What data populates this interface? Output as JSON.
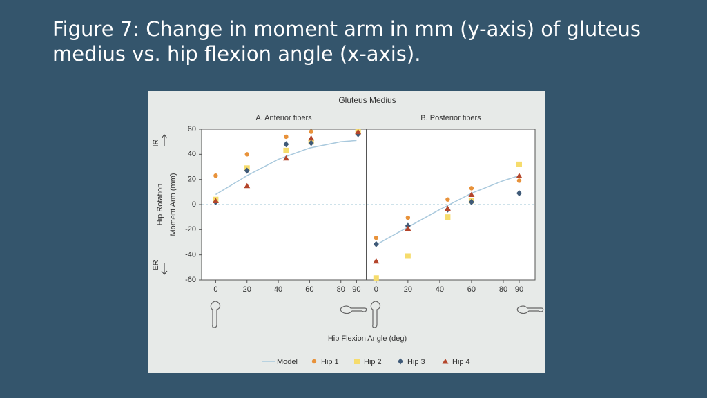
{
  "slide_title": [
    "Figure 7: Change in moment arm in mm (y-axis) of gluteus",
    "medius vs. hip flexion angle (x-axis)."
  ],
  "figure_title": "Gluteus Medius",
  "x_label": "Hip Flexion Angle (deg)",
  "y_label": [
    "Hip Rotation",
    "Moment Arm (mm)"
  ],
  "ir_label": "IR",
  "er_label": "ER",
  "legend": [
    {
      "name": "Model",
      "marker": "line",
      "color": "#a9c9dd"
    },
    {
      "name": "Hip 1",
      "marker": "circle",
      "color": "#e8923a"
    },
    {
      "name": "Hip 2",
      "marker": "square",
      "color": "#f6dc6c"
    },
    {
      "name": "Hip 3",
      "marker": "diamond",
      "color": "#3f5a78"
    },
    {
      "name": "Hip 4",
      "marker": "triangle",
      "color": "#b4452b"
    }
  ],
  "chart_data": [
    {
      "type": "scatter",
      "title": "A. Anterior fibers",
      "x": [
        0,
        20,
        45,
        61,
        91
      ],
      "series": [
        {
          "values": [
            23,
            40,
            54,
            58,
            57
          ]
        },
        {
          "values": [
            4,
            29,
            43,
            50,
            58
          ]
        },
        {
          "values": [
            2,
            27,
            48,
            49,
            56
          ]
        },
        {
          "values": [
            3,
            15,
            37,
            53,
            58
          ]
        }
      ],
      "model": {
        "x": [
          0,
          20,
          40,
          60,
          80,
          90
        ],
        "y": [
          8,
          23,
          36,
          45,
          50,
          51
        ]
      },
      "xlim": [
        -9,
        96
      ],
      "ylim": [
        -60,
        60
      ],
      "xticks": [
        0,
        20,
        40,
        60,
        80,
        90
      ],
      "yticks": [
        -60,
        -40,
        -20,
        0,
        20,
        40,
        60
      ],
      "zero_line": true
    },
    {
      "type": "scatter",
      "title": "B. Posterior fibers",
      "x": [
        0,
        20,
        45,
        60,
        90
      ],
      "series": [
        {
          "values": [
            -26.5,
            -10.5,
            4,
            13,
            19
          ]
        },
        {
          "values": [
            -58.5,
            -41,
            -10,
            3,
            32
          ]
        },
        {
          "values": [
            -31.5,
            -17,
            -4,
            2,
            9
          ]
        },
        {
          "values": [
            -45,
            -19,
            -3,
            8,
            23
          ]
        }
      ],
      "model": {
        "x": [
          0,
          20,
          40,
          60,
          80,
          90
        ],
        "y": [
          -32,
          -18,
          -4,
          9,
          19,
          23
        ]
      },
      "xlim": [
        -6,
        100
      ],
      "ylim": [
        -60,
        60
      ],
      "xticks": [
        0,
        20,
        40,
        60,
        80,
        90
      ],
      "zero_line": true
    }
  ]
}
